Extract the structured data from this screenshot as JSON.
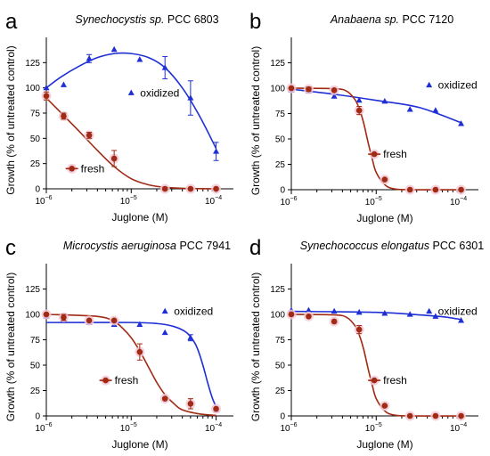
{
  "chart_data": [
    {
      "type": "scatter",
      "panel_label": "a",
      "title_italic": "Synechocystis sp.",
      "title_rest": " PCC 6803",
      "xlabel": "Juglone (M)",
      "ylabel": "Growth (% of untreated control)",
      "xscale": "log",
      "xlim": [
        "1e-6",
        "1.6e-4"
      ],
      "ylim": [
        0,
        150
      ],
      "xticks": [
        "10",
        "10",
        "10"
      ],
      "xtick_exponents": [
        "−6",
        "−5",
        "−4"
      ],
      "yticks": [
        "0",
        "25",
        "50",
        "75",
        "100",
        "125"
      ],
      "series": [
        {
          "name": "oxidized",
          "color": "#1f2fd6",
          "marker": "triangle",
          "x": [
            1e-06,
            1.6e-06,
            3.2e-06,
            6.3e-06,
            1.26e-05,
            2.5e-05,
            5e-05,
            0.0001
          ],
          "y": [
            100,
            103,
            129,
            138,
            128,
            120,
            90,
            37
          ],
          "err": [
            0,
            0,
            4,
            0,
            0,
            11,
            17,
            9
          ],
          "fit_x": [
            1e-06,
            1.5e-06,
            2.5e-06,
            4e-06,
            6.3e-06,
            1e-05,
            1.6e-05,
            2.5e-05,
            4e-05,
            6.3e-05,
            0.0001
          ],
          "fit_y": [
            100,
            111,
            122,
            130,
            134,
            134,
            130,
            120,
            100,
            73,
            40
          ]
        },
        {
          "name": "fresh",
          "color": "#a02a14",
          "marker": "circle",
          "x": [
            1e-06,
            1.6e-06,
            3.2e-06,
            6.3e-06,
            2.5e-05,
            5e-05,
            0.0001
          ],
          "y": [
            92,
            72,
            53,
            30,
            0,
            0,
            0
          ],
          "err": [
            4,
            3,
            3,
            8,
            0,
            0,
            0
          ],
          "fit_x": [
            1e-06,
            1.5e-06,
            2.5e-06,
            4e-06,
            6.3e-06,
            1e-05,
            1.6e-05,
            2.5e-05,
            4e-05,
            0.0001
          ],
          "fit_y": [
            90,
            75,
            56,
            38,
            22,
            10,
            4,
            1.5,
            0.5,
            0
          ]
        }
      ]
    },
    {
      "type": "scatter",
      "panel_label": "b",
      "title_italic": "Anabaena sp.",
      "title_rest": " PCC 7120",
      "xlabel": "Juglone (M)",
      "ylabel": "Growth (% of untreated control)",
      "xscale": "log",
      "xlim": [
        "1e-6",
        "1.6e-4"
      ],
      "ylim": [
        0,
        150
      ],
      "xticks": [
        "10",
        "10",
        "10"
      ],
      "xtick_exponents": [
        "−6",
        "−5",
        "−4"
      ],
      "yticks": [
        "0",
        "25",
        "50",
        "75",
        "100",
        "125"
      ],
      "series": [
        {
          "name": "oxidized",
          "color": "#1f2fd6",
          "marker": "triangle",
          "x": [
            1e-06,
            1.6e-06,
            3.2e-06,
            6.3e-06,
            1.26e-05,
            2.5e-05,
            5e-05,
            0.0001
          ],
          "y": [
            98,
            97,
            92,
            88,
            87,
            79,
            78,
            65
          ],
          "err": [
            0,
            0,
            0,
            0,
            0,
            0,
            0,
            0
          ],
          "fit_x": [
            1e-06,
            3.2e-06,
            1e-05,
            3.2e-05,
            0.0001
          ],
          "fit_y": [
            99,
            94,
            88,
            81,
            66
          ]
        },
        {
          "name": "fresh",
          "color": "#a02a14",
          "marker": "circle",
          "x": [
            1e-06,
            1.6e-06,
            3.2e-06,
            6.3e-06,
            1.26e-05,
            2.5e-05,
            5e-05,
            0.0001
          ],
          "y": [
            100,
            99,
            98,
            78,
            10,
            0,
            0,
            0
          ],
          "err": [
            0,
            2,
            0,
            4,
            0,
            0,
            0,
            0
          ],
          "fit_x": [
            1e-06,
            3.2e-06,
            4.5e-06,
            5.6e-06,
            6.3e-06,
            7.1e-06,
            8e-06,
            9e-06,
            1e-05,
            1.26e-05,
            1.6e-05,
            2.5e-05,
            0.0001
          ],
          "fit_y": [
            100,
            99.5,
            97,
            89,
            80,
            66,
            47,
            30,
            17,
            5,
            1,
            0,
            0
          ]
        }
      ]
    },
    {
      "type": "scatter",
      "panel_label": "c",
      "title_italic": "Microcystis aeruginosa",
      "title_rest": " PCC 7941",
      "xlabel": "Juglone (M)",
      "ylabel": "Growth (% of untreated control)",
      "xscale": "log",
      "xlim": [
        "1e-6",
        "1.6e-4"
      ],
      "ylim": [
        0,
        150
      ],
      "xticks": [
        "10",
        "10",
        "10"
      ],
      "xtick_exponents": [
        "−6",
        "−5",
        "−4"
      ],
      "yticks": [
        "0",
        "25",
        "50",
        "75",
        "100",
        "125"
      ],
      "series": [
        {
          "name": "oxidized",
          "color": "#1f2fd6",
          "marker": "triangle",
          "x": [
            1e-06,
            1.6e-06,
            3.2e-06,
            6.3e-06,
            1.26e-05,
            2.5e-05,
            5e-05,
            0.0001
          ],
          "y": [
            98,
            95,
            92,
            90,
            90,
            82,
            77,
            6
          ],
          "err": [
            0,
            0,
            0,
            0,
            0,
            0,
            3,
            2
          ],
          "fit_x": [
            1e-06,
            1e-05,
            2e-05,
            3.2e-05,
            4.5e-05,
            5.6e-05,
            6.3e-05,
            7.1e-05,
            8e-05,
            9e-05,
            0.0001
          ],
          "fit_y": [
            92,
            92,
            91,
            88,
            82,
            72,
            62,
            48,
            32,
            18,
            9
          ]
        },
        {
          "name": "fresh",
          "color": "#a02a14",
          "marker": "circle",
          "x": [
            1e-06,
            1.6e-06,
            3.2e-06,
            6.3e-06,
            1.26e-05,
            2.5e-05,
            5e-05,
            0.0001
          ],
          "y": [
            100,
            97,
            94,
            94,
            63,
            17,
            12,
            7
          ],
          "err": [
            0,
            3,
            0,
            0,
            8,
            0,
            5,
            0
          ],
          "fit_x": [
            1e-06,
            4e-06,
            6.3e-06,
            8e-06,
            1e-05,
            1.26e-05,
            1.6e-05,
            2e-05,
            2.5e-05,
            3.2e-05,
            4e-05,
            6.3e-05,
            0.0001
          ],
          "fit_y": [
            100,
            98,
            93,
            86,
            77,
            64,
            48,
            33,
            21,
            12,
            6,
            2,
            0.5
          ]
        }
      ]
    },
    {
      "type": "scatter",
      "panel_label": "d",
      "title_italic": "Synechococcus elongatus",
      "title_rest": " PCC 6301",
      "xlabel": "Juglone (M)",
      "ylabel": "Growth (% of untreated control)",
      "xscale": "log",
      "xlim": [
        "1e-6",
        "1.6e-4"
      ],
      "ylim": [
        0,
        150
      ],
      "xticks": [
        "10",
        "10",
        "10"
      ],
      "xtick_exponents": [
        "−6",
        "−5",
        "−4"
      ],
      "yticks": [
        "0",
        "25",
        "50",
        "75",
        "100",
        "125"
      ],
      "series": [
        {
          "name": "oxidized",
          "color": "#1f2fd6",
          "marker": "triangle",
          "x": [
            1e-06,
            1.6e-06,
            3.2e-06,
            6.3e-06,
            1.26e-05,
            2.5e-05,
            5e-05,
            0.0001
          ],
          "y": [
            104,
            104,
            103,
            102,
            101,
            100,
            98,
            94
          ],
          "err": [
            0,
            0,
            0,
            0,
            0,
            0,
            0,
            0
          ],
          "fit_x": [
            1e-06,
            1e-05,
            3.2e-05,
            6.3e-05,
            0.0001
          ],
          "fit_y": [
            103,
            102,
            99.5,
            97.5,
            95
          ]
        },
        {
          "name": "fresh",
          "color": "#a02a14",
          "marker": "circle",
          "x": [
            1e-06,
            1.6e-06,
            3.2e-06,
            6.3e-06,
            1.26e-05,
            2.5e-05,
            5e-05,
            0.0001
          ],
          "y": [
            100,
            98,
            93,
            85,
            10,
            0,
            0,
            0
          ],
          "err": [
            0,
            0,
            0,
            4,
            0,
            0,
            0,
            0
          ],
          "fit_x": [
            1e-06,
            3.2e-06,
            4.5e-06,
            5.6e-06,
            6.3e-06,
            7.1e-06,
            8e-06,
            9e-06,
            1e-05,
            1.26e-05,
            1.6e-05,
            2.5e-05,
            0.0001
          ],
          "fit_y": [
            100,
            99.5,
            97,
            89,
            80,
            66,
            47,
            30,
            17,
            5,
            1,
            0,
            0
          ]
        }
      ]
    }
  ]
}
